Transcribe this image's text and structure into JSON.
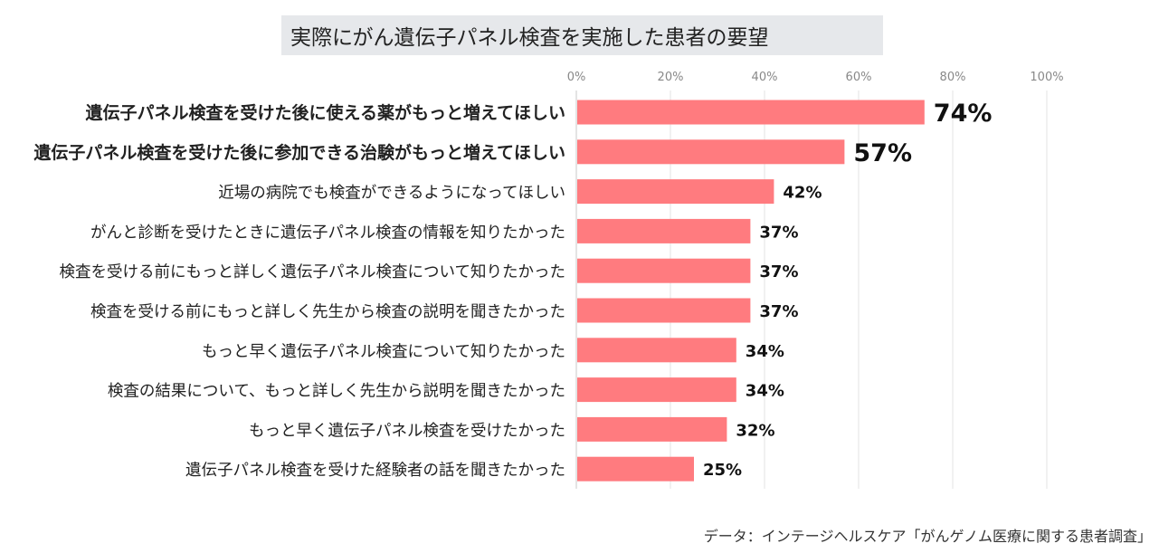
{
  "chart_data": {
    "type": "bar",
    "orientation": "horizontal",
    "title": "実際にがん遺伝子パネル検査を実施した患者の要望",
    "xlim": [
      0,
      100
    ],
    "ticks": [
      "0%",
      "20%",
      "40%",
      "60%",
      "80%",
      "100%"
    ],
    "grid": true,
    "bar_color": "#ff7b7f",
    "categories": [
      "遺伝子パネル検査を受けた後に使える薬がもっと増えてほしい",
      "遺伝子パネル検査を受けた後に参加できる治験がもっと増えてほしい",
      "近場の病院でも検査ができるようになってほしい",
      "がんと診断を受けたときに遺伝子パネル検査の情報を知りたかった",
      "検査を受ける前にもっと詳しく遺伝子パネル検査について知りたかった",
      "検査を受ける前にもっと詳しく先生から検査の説明を聞きたかった",
      "もっと早く遺伝子パネル検査について知りたかった",
      "検査の結果について、もっと詳しく先生から説明を聞きたかった",
      "もっと早く遺伝子パネル検査を受けたかった",
      "遺伝子パネル検査を受けた経験者の話を聞きたかった"
    ],
    "values": [
      74,
      57,
      42,
      37,
      37,
      37,
      34,
      34,
      32,
      25
    ],
    "labels": [
      "74%",
      "57%",
      "42%",
      "37%",
      "37%",
      "37%",
      "34%",
      "34%",
      "32%",
      "25%"
    ],
    "emphasized": [
      true,
      true,
      false,
      false,
      false,
      false,
      false,
      false,
      false,
      false
    ]
  },
  "source": "データ：インテージヘルスケア「がんゲノム医療に関する患者調査」"
}
